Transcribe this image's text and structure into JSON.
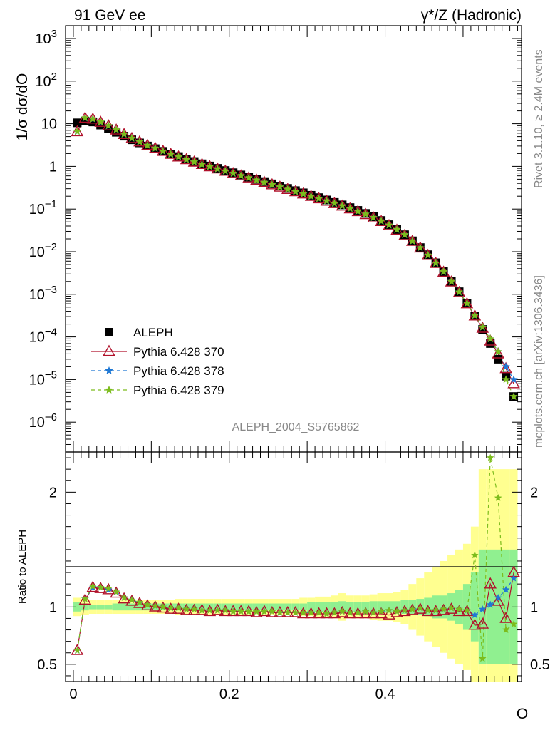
{
  "header": {
    "left": "91 GeV ee",
    "right": "γ*/Z (Hadronic)"
  },
  "side_labels": {
    "rivet": "Rivet 3.1.10, ≥ 2.4M events",
    "mcplots": "mcplots.cern.ch [arXiv:1306.3436]"
  },
  "watermark": "ALEPH_2004_S5765862",
  "chart_data": [
    {
      "type": "scatter",
      "title": "",
      "ylabel": "1/σ dσ/dO",
      "xlabel": "O",
      "yscale": "log",
      "xlim": [
        -0.01,
        0.575
      ],
      "ylim": [
        2e-07,
        2000
      ],
      "ytick_labels": [
        "10^-6",
        "10^-5",
        "10^-4",
        "10^-3",
        "10^-2",
        "10^-1",
        "1",
        "10",
        "10^2",
        "10^3"
      ],
      "legend_position": "lower-left",
      "legend": [
        "ALEPH",
        "Pythia 6.428 370",
        "Pythia 6.428 378",
        "Pythia 6.428 379"
      ],
      "colors": {
        "ALEPH": "#000000",
        "p370": "#b0102a",
        "p378": "#1f78d4",
        "p379": "#7cbc1c",
        "band_inner": "#90f090",
        "band_outer": "#ffff90"
      },
      "x": [
        0.005,
        0.015,
        0.025,
        0.035,
        0.045,
        0.055,
        0.065,
        0.075,
        0.085,
        0.095,
        0.105,
        0.115,
        0.125,
        0.135,
        0.145,
        0.155,
        0.165,
        0.175,
        0.185,
        0.195,
        0.205,
        0.215,
        0.225,
        0.235,
        0.245,
        0.255,
        0.265,
        0.275,
        0.285,
        0.295,
        0.305,
        0.315,
        0.325,
        0.335,
        0.345,
        0.355,
        0.365,
        0.375,
        0.385,
        0.395,
        0.405,
        0.415,
        0.425,
        0.435,
        0.445,
        0.455,
        0.465,
        0.475,
        0.485,
        0.495,
        0.505,
        0.515,
        0.525,
        0.535,
        0.545,
        0.555,
        0.565
      ],
      "series": [
        {
          "name": "ALEPH",
          "values": [
            10.5,
            11.5,
            11.0,
            9.3,
            7.7,
            6.3,
            5.1,
            4.2,
            3.55,
            3.0,
            2.6,
            2.25,
            1.95,
            1.7,
            1.48,
            1.3,
            1.15,
            1.02,
            0.9,
            0.8,
            0.71,
            0.63,
            0.56,
            0.5,
            0.44,
            0.39,
            0.345,
            0.305,
            0.27,
            0.24,
            0.21,
            0.185,
            0.163,
            0.143,
            0.125,
            0.108,
            0.093,
            0.079,
            0.066,
            0.054,
            0.043,
            0.033,
            0.025,
            0.018,
            0.0125,
            0.0085,
            0.0055,
            0.0034,
            0.002,
            0.00115,
            0.00062,
            0.00031,
            0.00015,
            7e-05,
            3e-05,
            1.2e-05,
            4e-06
          ]
        },
        {
          "name": "Pythia 6.428 370",
          "values": [
            6.5,
            13.5,
            12.8,
            10.8,
            8.9,
            7.1,
            5.6,
            4.5,
            3.75,
            3.1,
            2.65,
            2.25,
            1.92,
            1.66,
            1.44,
            1.26,
            1.11,
            0.98,
            0.87,
            0.77,
            0.68,
            0.6,
            0.535,
            0.475,
            0.42,
            0.37,
            0.326,
            0.288,
            0.254,
            0.225,
            0.198,
            0.174,
            0.153,
            0.134,
            0.117,
            0.101,
            0.087,
            0.074,
            0.062,
            0.051,
            0.041,
            0.032,
            0.024,
            0.0175,
            0.0122,
            0.0082,
            0.0053,
            0.0033,
            0.00195,
            0.0011,
            0.0006,
            0.00031,
            0.00016,
            8e-05,
            4e-05,
            1.8e-05,
            8e-06
          ]
        },
        {
          "name": "Pythia 6.428 378",
          "values": [
            6.6,
            13.6,
            12.9,
            10.9,
            8.9,
            7.2,
            5.7,
            4.55,
            3.78,
            3.12,
            2.66,
            2.26,
            1.93,
            1.67,
            1.45,
            1.27,
            1.12,
            0.99,
            0.875,
            0.775,
            0.685,
            0.605,
            0.538,
            0.478,
            0.423,
            0.373,
            0.329,
            0.29,
            0.256,
            0.226,
            0.2,
            0.176,
            0.155,
            0.136,
            0.119,
            0.103,
            0.089,
            0.076,
            0.063,
            0.052,
            0.042,
            0.033,
            0.025,
            0.0178,
            0.0124,
            0.0083,
            0.0054,
            0.0034,
            0.002,
            0.00113,
            0.00062,
            0.00032,
            0.00017,
            9e-05,
            4.5e-05,
            2e-05,
            1e-05
          ]
        },
        {
          "name": "Pythia 6.428 379",
          "values": [
            6.6,
            13.7,
            13.0,
            11.0,
            9.0,
            7.2,
            5.7,
            4.55,
            3.78,
            3.12,
            2.66,
            2.26,
            1.93,
            1.67,
            1.45,
            1.27,
            1.12,
            0.99,
            0.875,
            0.775,
            0.685,
            0.605,
            0.538,
            0.478,
            0.423,
            0.373,
            0.329,
            0.29,
            0.256,
            0.226,
            0.2,
            0.176,
            0.155,
            0.136,
            0.119,
            0.103,
            0.089,
            0.076,
            0.063,
            0.052,
            0.042,
            0.033,
            0.025,
            0.0178,
            0.0124,
            0.0083,
            0.0054,
            0.0034,
            0.002,
            0.00113,
            0.00062,
            0.00032,
            0.00017,
            9e-05,
            4.5e-05,
            1e-05,
            4e-06
          ]
        }
      ]
    },
    {
      "type": "line",
      "ylabel": "Ratio to ALEPH",
      "xlabel": "O",
      "xlim": [
        -0.01,
        0.575
      ],
      "ylim": [
        0.35,
        2.35
      ],
      "ytick_labels": [
        "0.5",
        "1",
        "2"
      ],
      "xtick_labels": [
        "0",
        "0.2",
        "0.4"
      ],
      "band_inner": [
        0.04,
        0.03,
        0.02,
        0.02,
        0.02,
        0.03,
        0.03,
        0.03,
        0.03,
        0.03,
        0.03,
        0.03,
        0.03,
        0.03,
        0.03,
        0.03,
        0.03,
        0.03,
        0.03,
        0.03,
        0.03,
        0.03,
        0.03,
        0.03,
        0.03,
        0.03,
        0.03,
        0.03,
        0.03,
        0.03,
        0.04,
        0.04,
        0.04,
        0.04,
        0.05,
        0.04,
        0.04,
        0.04,
        0.05,
        0.05,
        0.05,
        0.05,
        0.06,
        0.06,
        0.07,
        0.08,
        0.1,
        0.1,
        0.12,
        0.15,
        0.2,
        0.3,
        0.5,
        0.5,
        0.5,
        0.5,
        0.5
      ],
      "band_outer": [
        0.08,
        0.07,
        0.06,
        0.06,
        0.06,
        0.06,
        0.06,
        0.06,
        0.06,
        0.06,
        0.06,
        0.06,
        0.06,
        0.07,
        0.07,
        0.07,
        0.07,
        0.07,
        0.07,
        0.07,
        0.07,
        0.07,
        0.07,
        0.07,
        0.07,
        0.07,
        0.07,
        0.07,
        0.07,
        0.08,
        0.08,
        0.09,
        0.09,
        0.1,
        0.12,
        0.1,
        0.1,
        0.1,
        0.11,
        0.12,
        0.12,
        0.13,
        0.15,
        0.2,
        0.25,
        0.3,
        0.35,
        0.4,
        0.45,
        0.5,
        0.55,
        0.7,
        1.2,
        1.2,
        1.2,
        1.2,
        1.2
      ],
      "series": [
        {
          "name": "Pythia 6.428 370",
          "values": [
            0.62,
            1.06,
            1.17,
            1.16,
            1.15,
            1.12,
            1.07,
            1.05,
            1.03,
            1.01,
            1.0,
            0.99,
            0.98,
            0.98,
            0.97,
            0.97,
            0.97,
            0.96,
            0.97,
            0.96,
            0.96,
            0.96,
            0.96,
            0.95,
            0.96,
            0.95,
            0.95,
            0.95,
            0.95,
            0.94,
            0.94,
            0.94,
            0.94,
            0.94,
            0.95,
            0.94,
            0.94,
            0.94,
            0.94,
            0.94,
            0.93,
            0.95,
            0.96,
            0.97,
            0.98,
            0.96,
            0.96,
            0.97,
            0.98,
            0.96,
            0.96,
            0.84,
            0.85,
            1.2,
            1.05,
            0.9,
            1.3
          ]
        },
        {
          "name": "Pythia 6.428 378",
          "values": [
            0.62,
            1.07,
            1.17,
            1.17,
            1.15,
            1.13,
            1.08,
            1.06,
            1.04,
            1.02,
            1.01,
            1.0,
            0.99,
            0.99,
            0.98,
            0.98,
            0.97,
            0.97,
            0.97,
            0.97,
            0.96,
            0.96,
            0.96,
            0.96,
            0.96,
            0.96,
            0.95,
            0.95,
            0.95,
            0.95,
            0.95,
            0.95,
            0.94,
            0.95,
            0.96,
            0.95,
            0.95,
            0.96,
            0.95,
            0.96,
            0.97,
            0.96,
            0.97,
            0.98,
            0.99,
            0.97,
            0.97,
            0.98,
            0.99,
            0.98,
            0.97,
            0.93,
            0.98,
            1.02,
            1.08,
            1.15,
            1.25
          ]
        },
        {
          "name": "Pythia 6.428 379",
          "values": [
            0.62,
            1.07,
            1.18,
            1.17,
            1.16,
            1.13,
            1.08,
            1.06,
            1.04,
            1.02,
            1.01,
            1.0,
            0.99,
            0.99,
            0.98,
            0.98,
            0.97,
            0.97,
            0.97,
            0.97,
            0.96,
            0.96,
            0.96,
            0.96,
            0.96,
            0.96,
            0.95,
            0.95,
            0.95,
            0.95,
            0.95,
            0.95,
            0.94,
            0.95,
            0.96,
            0.95,
            0.95,
            0.96,
            0.95,
            0.96,
            0.97,
            0.96,
            0.97,
            0.98,
            0.99,
            0.97,
            0.97,
            0.98,
            0.99,
            0.98,
            0.97,
            1.45,
            0.55,
            2.3,
            1.95,
            0.8,
            0.85
          ]
        }
      ]
    }
  ]
}
